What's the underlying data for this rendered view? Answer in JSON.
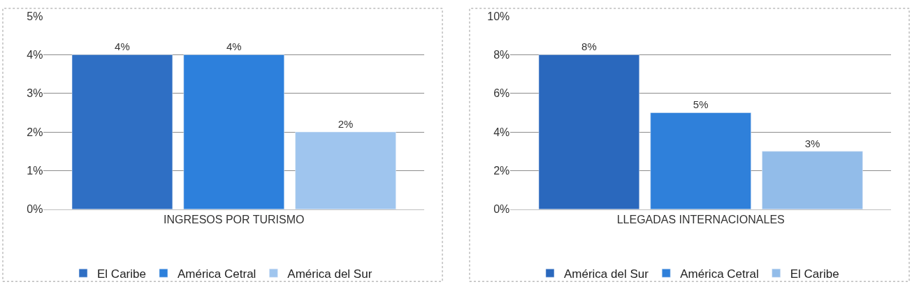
{
  "chart_data": [
    {
      "type": "bar",
      "categories": [
        "INGRESOS POR TURISMO"
      ],
      "ylim": [
        0,
        5
      ],
      "yticks": [
        {
          "value": 0,
          "label": "0%"
        },
        {
          "value": 1,
          "label": "1%"
        },
        {
          "value": 2,
          "label": "2%"
        },
        {
          "value": 3,
          "label": "3%"
        },
        {
          "value": 4,
          "label": "4%"
        },
        {
          "value": 5,
          "label": "5%"
        }
      ],
      "grid": "y",
      "legend": "bottom",
      "series": [
        {
          "name": "El Caribe",
          "color": "#2f6fc4",
          "values": [
            4
          ],
          "value_labels": [
            "4%"
          ]
        },
        {
          "name": "América Cetral",
          "color": "#2d80dc",
          "values": [
            4
          ],
          "value_labels": [
            "4%"
          ]
        },
        {
          "name": "América del Sur",
          "color": "#9fc5ee",
          "values": [
            2
          ],
          "value_labels": [
            "2%"
          ]
        }
      ]
    },
    {
      "type": "bar",
      "categories": [
        "LLEGADAS INTERNACIONALES"
      ],
      "ylim": [
        0,
        10
      ],
      "yticks": [
        {
          "value": 0,
          "label": "0%"
        },
        {
          "value": 2,
          "label": "2%"
        },
        {
          "value": 4,
          "label": "4%"
        },
        {
          "value": 6,
          "label": "6%"
        },
        {
          "value": 8,
          "label": "8%"
        },
        {
          "value": 10,
          "label": "10%"
        }
      ],
      "grid": "y",
      "legend": "bottom",
      "series": [
        {
          "name": "América del Sur",
          "color": "#2a68bd",
          "values": [
            8
          ],
          "value_labels": [
            "8%"
          ]
        },
        {
          "name": "América Cetral",
          "color": "#2f80da",
          "values": [
            5
          ],
          "value_labels": [
            "5%"
          ]
        },
        {
          "name": "El Caribe",
          "color": "#92bce9",
          "values": [
            3
          ],
          "value_labels": [
            "3%"
          ]
        }
      ]
    }
  ]
}
